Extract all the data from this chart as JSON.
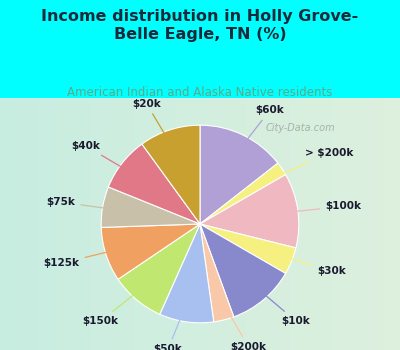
{
  "title": "Income distribution in Holly Grove-\nBelle Eagle, TN (%)",
  "subtitle": "American Indian and Alaska Native residents",
  "background_color": "#00ffff",
  "labels": [
    "$60k",
    "> $200k",
    "$100k",
    "$30k",
    "$10k",
    "$200k",
    "$50k",
    "$150k",
    "$125k",
    "$75k",
    "$40k",
    "$20k"
  ],
  "values": [
    13,
    2,
    11,
    4,
    10,
    3,
    8,
    8,
    8,
    6,
    8,
    9
  ],
  "colors": [
    "#b0a0d5",
    "#f5f080",
    "#f0b8c0",
    "#f5f080",
    "#8888cc",
    "#f8c8a8",
    "#a8c0f0",
    "#c0e870",
    "#f0a060",
    "#c8c0a8",
    "#e07888",
    "#c8a030"
  ],
  "watermark": "City-Data.com",
  "title_color": "#1a2a3a",
  "subtitle_color": "#5aaa88",
  "label_color": "#1a1a2e",
  "chart_bg_left": "#cceee0",
  "chart_bg_right": "#e0f0e8"
}
